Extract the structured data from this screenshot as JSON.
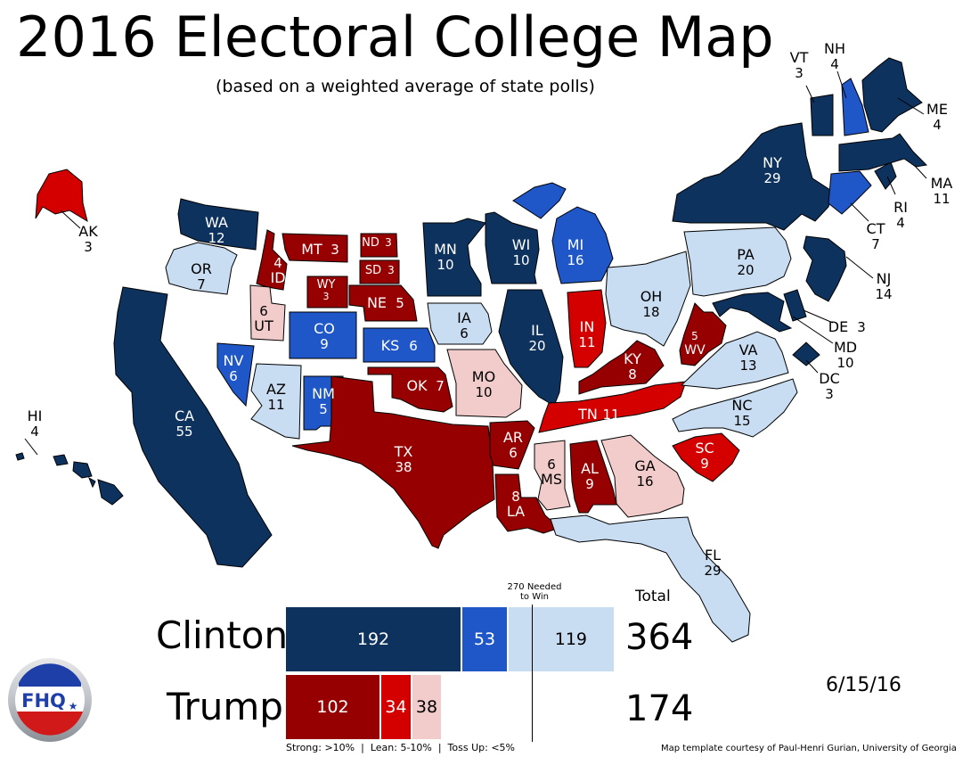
{
  "title": "2016 Electoral College Map",
  "subtitle": "(based on a weighted average of state polls)",
  "colors": {
    "clinton_strong": "#0e325e",
    "clinton_lean": "#1f56c8",
    "clinton_tossup": "#c8ddf2",
    "trump_strong": "#960000",
    "trump_lean": "#d40000",
    "trump_tossup": "#f2cbcb"
  },
  "states": [
    {
      "abbr": "WA",
      "ev": "12",
      "cat": "clinton_strong"
    },
    {
      "abbr": "OR",
      "ev": "7",
      "cat": "clinton_tossup"
    },
    {
      "abbr": "CA",
      "ev": "55",
      "cat": "clinton_strong"
    },
    {
      "abbr": "NV",
      "ev": "6",
      "cat": "clinton_lean"
    },
    {
      "abbr": "ID",
      "ev": "4",
      "cat": "trump_strong"
    },
    {
      "abbr": "MT",
      "ev": "3",
      "cat": "trump_strong"
    },
    {
      "abbr": "WY",
      "ev": "3",
      "cat": "trump_strong"
    },
    {
      "abbr": "UT",
      "ev": "6",
      "cat": "trump_tossup"
    },
    {
      "abbr": "AZ",
      "ev": "11",
      "cat": "clinton_tossup"
    },
    {
      "abbr": "CO",
      "ev": "9",
      "cat": "clinton_lean"
    },
    {
      "abbr": "NM",
      "ev": "5",
      "cat": "clinton_lean"
    },
    {
      "abbr": "ND",
      "ev": "3",
      "cat": "trump_strong"
    },
    {
      "abbr": "SD",
      "ev": "3",
      "cat": "trump_strong"
    },
    {
      "abbr": "NE",
      "ev": "5",
      "cat": "trump_strong"
    },
    {
      "abbr": "KS",
      "ev": "6",
      "cat": "clinton_lean"
    },
    {
      "abbr": "OK",
      "ev": "7",
      "cat": "trump_strong"
    },
    {
      "abbr": "TX",
      "ev": "38",
      "cat": "trump_strong"
    },
    {
      "abbr": "MN",
      "ev": "10",
      "cat": "clinton_strong"
    },
    {
      "abbr": "IA",
      "ev": "6",
      "cat": "clinton_tossup"
    },
    {
      "abbr": "MO",
      "ev": "10",
      "cat": "trump_tossup"
    },
    {
      "abbr": "AR",
      "ev": "6",
      "cat": "trump_strong"
    },
    {
      "abbr": "LA",
      "ev": "8",
      "cat": "trump_strong"
    },
    {
      "abbr": "WI",
      "ev": "10",
      "cat": "clinton_strong"
    },
    {
      "abbr": "IL",
      "ev": "20",
      "cat": "clinton_strong"
    },
    {
      "abbr": "MI",
      "ev": "16",
      "cat": "clinton_lean"
    },
    {
      "abbr": "IN",
      "ev": "11",
      "cat": "trump_lean"
    },
    {
      "abbr": "OH",
      "ev": "18",
      "cat": "clinton_tossup"
    },
    {
      "abbr": "KY",
      "ev": "8",
      "cat": "trump_strong"
    },
    {
      "abbr": "TN",
      "ev": "11",
      "cat": "trump_lean"
    },
    {
      "abbr": "MS",
      "ev": "6",
      "cat": "trump_tossup"
    },
    {
      "abbr": "AL",
      "ev": "9",
      "cat": "trump_strong"
    },
    {
      "abbr": "GA",
      "ev": "16",
      "cat": "trump_tossup"
    },
    {
      "abbr": "FL",
      "ev": "29",
      "cat": "clinton_tossup"
    },
    {
      "abbr": "SC",
      "ev": "9",
      "cat": "trump_lean"
    },
    {
      "abbr": "NC",
      "ev": "15",
      "cat": "clinton_tossup"
    },
    {
      "abbr": "VA",
      "ev": "13",
      "cat": "clinton_tossup"
    },
    {
      "abbr": "WV",
      "ev": "5",
      "cat": "trump_strong"
    },
    {
      "abbr": "PA",
      "ev": "20",
      "cat": "clinton_tossup"
    },
    {
      "abbr": "NY",
      "ev": "29",
      "cat": "clinton_strong"
    },
    {
      "abbr": "NJ",
      "ev": "14",
      "cat": "clinton_strong"
    },
    {
      "abbr": "DE",
      "ev": "3",
      "cat": "clinton_strong"
    },
    {
      "abbr": "MD",
      "ev": "10",
      "cat": "clinton_strong"
    },
    {
      "abbr": "DC",
      "ev": "3",
      "cat": "clinton_strong"
    },
    {
      "abbr": "CT",
      "ev": "7",
      "cat": "clinton_lean"
    },
    {
      "abbr": "RI",
      "ev": "4",
      "cat": "clinton_strong"
    },
    {
      "abbr": "MA",
      "ev": "11",
      "cat": "clinton_strong"
    },
    {
      "abbr": "VT",
      "ev": "3",
      "cat": "clinton_strong"
    },
    {
      "abbr": "NH",
      "ev": "4",
      "cat": "clinton_lean"
    },
    {
      "abbr": "ME",
      "ev": "4",
      "cat": "clinton_strong"
    },
    {
      "abbr": "AK",
      "ev": "3",
      "cat": "trump_lean"
    },
    {
      "abbr": "HI",
      "ev": "4",
      "cat": "clinton_strong"
    }
  ],
  "tally": {
    "needed_label": "270 Needed to Win",
    "needed_line1": "270 Needed",
    "needed_line2": "to Win",
    "total_header": "Total",
    "clinton": {
      "name": "Clinton",
      "strong": "192",
      "lean": "53",
      "tossup": "119",
      "total": "364"
    },
    "trump": {
      "name": "Trump",
      "strong": "102",
      "lean": "34",
      "tossup": "38",
      "total": "174"
    }
  },
  "legend": "Strong: >10%  |  Lean: 5-10%  |  Toss Up: <5%",
  "date": "6/15/16",
  "credit": "Map template courtesy of Paul-Henri Gurian, University of Georgia",
  "logo_text": "FHQ"
}
